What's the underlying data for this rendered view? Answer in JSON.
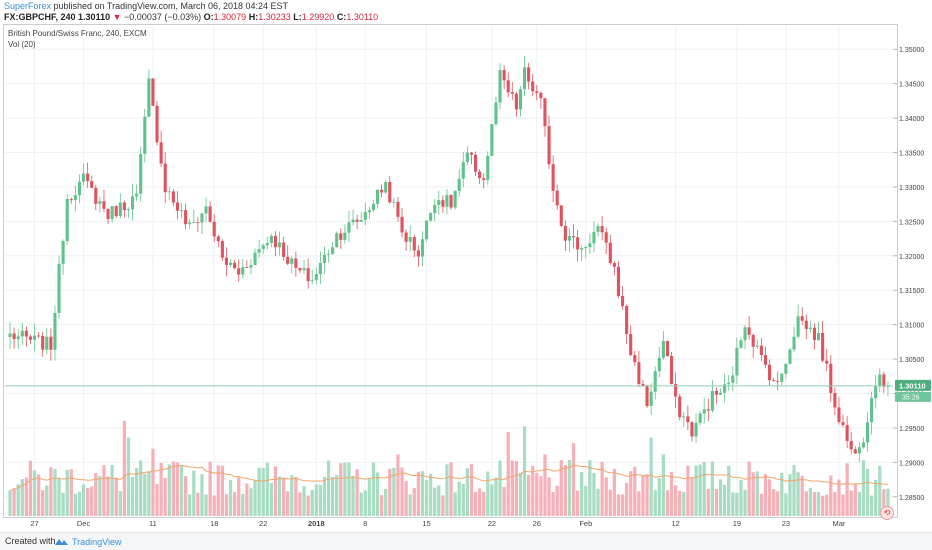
{
  "header": {
    "publisher": "SuperForex",
    "published_text": " published on TradingView.com, March 06, 2018 04:24 EST",
    "symbol": "FX:GBPCHF, 240",
    "change_arrow": "▼",
    "last": "1.30110",
    "change": "−0.00037 (−0.03%)",
    "o_label": "O:",
    "o_value": "1.30079",
    "h_label": "H:",
    "h_value": "1.30233",
    "l_label": "L:",
    "l_value": "1.29920",
    "c_label": "C:",
    "c_value": "1.30110"
  },
  "legend": {
    "series": "British Pound/Swiss Franc, 240, EXCM",
    "volume": "Vol (20)"
  },
  "price_badge": "1.30110",
  "countdown_badge": "35:26",
  "footer": {
    "created_with": "Created with",
    "tv_name": "TradingView"
  },
  "colors": {
    "up": "#5fc28a",
    "down": "#e0525e",
    "vol_up": "#a8dcc3",
    "vol_down": "#f5b0b8",
    "vol_ma": "#f2a56a",
    "grid": "#eef0f3",
    "last_price_line": "#8fcfb0",
    "badge_price": "#4fae7e",
    "badge_time": "#6ec49b",
    "axis_text": "#444444"
  },
  "chart_data": {
    "type": "candlestick",
    "symbol": "GBPCHF",
    "timeframe": "240",
    "ylim": [
      1.2825,
      1.3525
    ],
    "y_ticks": [
      "1.35000",
      "1.34500",
      "1.34000",
      "1.33500",
      "1.33000",
      "1.32500",
      "1.32000",
      "1.31500",
      "1.31000",
      "1.30500",
      "1.30000",
      "1.29500",
      "1.29000",
      "1.28500"
    ],
    "x_ticks": [
      {
        "label": "27",
        "idx": 6
      },
      {
        "label": "Dec",
        "idx": 18
      },
      {
        "label": "11",
        "idx": 35
      },
      {
        "label": "18",
        "idx": 50
      },
      {
        "label": "22",
        "idx": 62
      },
      {
        "label": "2018",
        "idx": 75
      },
      {
        "label": "8",
        "idx": 87
      },
      {
        "label": "15",
        "idx": 102
      },
      {
        "label": "22",
        "idx": 118
      },
      {
        "label": "26",
        "idx": 129
      },
      {
        "label": "Feb",
        "idx": 141
      },
      {
        "label": "12",
        "idx": 163
      },
      {
        "label": "19",
        "idx": 178
      },
      {
        "label": "23",
        "idx": 190
      },
      {
        "label": "Mar",
        "idx": 203
      }
    ],
    "last_price": 1.3011,
    "candle_count": 216,
    "anchors": [
      [
        0,
        1.3085
      ],
      [
        10,
        1.307
      ],
      [
        14,
        1.3285
      ],
      [
        18,
        1.331
      ],
      [
        24,
        1.326
      ],
      [
        31,
        1.3285
      ],
      [
        34,
        1.345
      ],
      [
        38,
        1.33
      ],
      [
        44,
        1.324
      ],
      [
        48,
        1.327
      ],
      [
        52,
        1.3195
      ],
      [
        56,
        1.3175
      ],
      [
        64,
        1.323
      ],
      [
        70,
        1.318
      ],
      [
        74,
        1.3165
      ],
      [
        80,
        1.323
      ],
      [
        86,
        1.3255
      ],
      [
        92,
        1.3305
      ],
      [
        96,
        1.3235
      ],
      [
        100,
        1.3205
      ],
      [
        104,
        1.3285
      ],
      [
        108,
        1.3275
      ],
      [
        112,
        1.3345
      ],
      [
        116,
        1.331
      ],
      [
        120,
        1.346
      ],
      [
        124,
        1.3415
      ],
      [
        126,
        1.3465
      ],
      [
        130,
        1.342
      ],
      [
        133,
        1.33
      ],
      [
        136,
        1.323
      ],
      [
        140,
        1.321
      ],
      [
        144,
        1.324
      ],
      [
        148,
        1.318
      ],
      [
        152,
        1.306
      ],
      [
        156,
        1.2985
      ],
      [
        160,
        1.3075
      ],
      [
        163,
        1.2985
      ],
      [
        167,
        1.2945
      ],
      [
        172,
        1.2995
      ],
      [
        176,
        1.301
      ],
      [
        180,
        1.3105
      ],
      [
        184,
        1.305
      ],
      [
        188,
        1.301
      ],
      [
        193,
        1.311
      ],
      [
        198,
        1.308
      ],
      [
        202,
        1.2985
      ],
      [
        206,
        1.2915
      ],
      [
        209,
        1.294
      ],
      [
        212,
        1.302
      ],
      [
        215,
        1.3011
      ]
    ],
    "volume_scale": "0–1 relative heights",
    "volume_spikes": [
      [
        28,
        0.85
      ],
      [
        29,
        0.7
      ],
      [
        35,
        0.6
      ],
      [
        95,
        0.55
      ],
      [
        122,
        0.75
      ],
      [
        126,
        0.8
      ],
      [
        131,
        0.55
      ],
      [
        138,
        0.65
      ],
      [
        157,
        0.7
      ],
      [
        160,
        0.55
      ],
      [
        176,
        0.45
      ]
    ]
  }
}
